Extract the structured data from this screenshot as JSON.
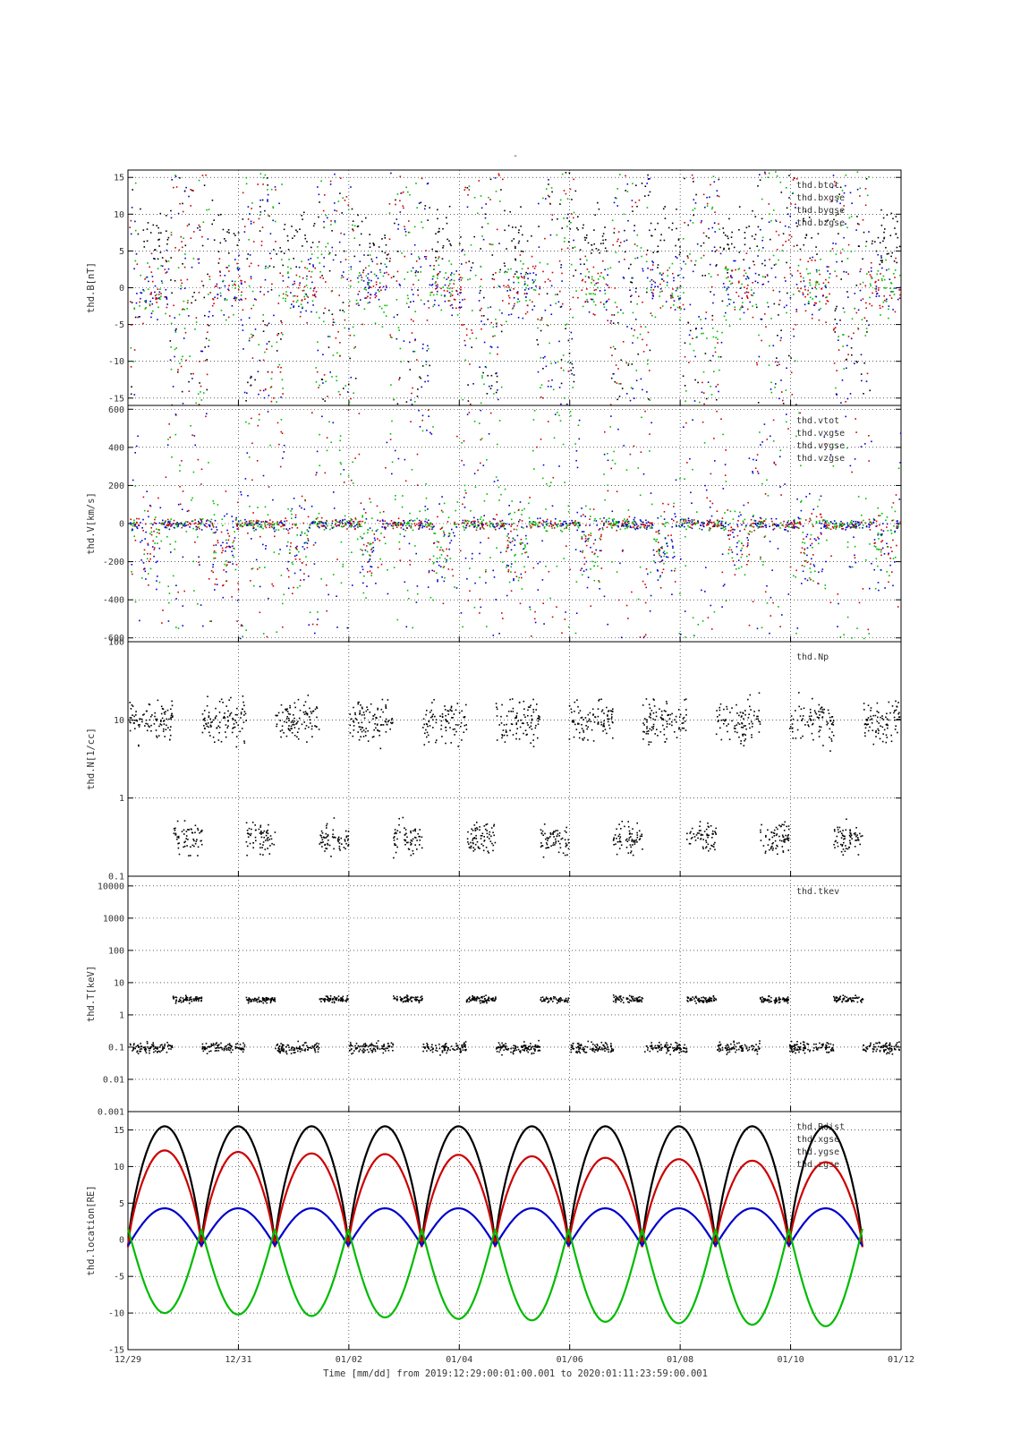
{
  "figure": {
    "title": "-",
    "x_axis_label": "Time [mm/dd]  from 2019:12:29:00:01:00.001  to  2020:01:11:23:59:00.001",
    "x_tick_labels": [
      "12/29",
      "12/31",
      "01/02",
      "01/04",
      "01/06",
      "01/08",
      "01/10",
      "01/12"
    ],
    "x_range_days": [
      0,
      14
    ],
    "series_colors": {
      "black": "#000000",
      "red": "#cc0000",
      "blue": "#0000cc",
      "green": "#00bb00"
    }
  },
  "chart_data": [
    {
      "type": "scatter",
      "ylabel": "thd.B[nT]",
      "ylim": [
        -16,
        16
      ],
      "y_scale": "linear",
      "ytick_values": [
        -15,
        -10,
        -5,
        0,
        5,
        10,
        15
      ],
      "ytick_labels": [
        "-15",
        "-10",
        "-5",
        "0",
        "5",
        "10",
        "15"
      ],
      "grid": true,
      "legend_placement": "top-right",
      "series": [
        {
          "name": "thd.btot",
          "color": "#000000"
        },
        {
          "name": "thd.bxgse",
          "color": "#cc0000"
        },
        {
          "name": "thd.bygse",
          "color": "#0000cc"
        },
        {
          "name": "thd.bzgse",
          "color": "#00bb00"
        }
      ],
      "note_values": "dense scatter approx: btot 0-15 nT, components -15..15 nT, periodic with ~1.33 day orbit"
    },
    {
      "type": "scatter",
      "ylabel": "thd.V[km/s]",
      "ylim": [
        -620,
        620
      ],
      "y_scale": "linear",
      "ytick_values": [
        -600,
        -400,
        -200,
        0,
        200,
        400,
        600
      ],
      "ytick_labels": [
        "-600",
        "-400",
        "-200",
        "0",
        "200",
        "400",
        "600"
      ],
      "grid": true,
      "legend_placement": "top-right",
      "series": [
        {
          "name": "thd.vtot",
          "color": "#000000"
        },
        {
          "name": "thd.vxgse",
          "color": "#cc0000"
        },
        {
          "name": "thd.vygse",
          "color": "#0000cc"
        },
        {
          "name": "thd.vzgse",
          "color": "#00bb00"
        }
      ]
    },
    {
      "type": "scatter",
      "ylabel": "thd.N[1/cc]",
      "ylim": [
        0.1,
        100
      ],
      "y_scale": "log",
      "ytick_values": [
        0.1,
        1,
        10,
        100
      ],
      "ytick_labels": [
        "0.1",
        "1",
        "10",
        "100"
      ],
      "grid": true,
      "legend_placement": "top-right",
      "series": [
        {
          "name": "thd.Np",
          "color": "#000000"
        }
      ]
    },
    {
      "type": "scatter",
      "ylabel": "thd.T[keV]",
      "ylim": [
        0.001,
        20000
      ],
      "y_scale": "log",
      "ytick_values": [
        0.001,
        0.01,
        0.1,
        1,
        10,
        100,
        1000,
        10000
      ],
      "ytick_labels": [
        "0.001",
        "0.01",
        "0.1",
        "1",
        "10",
        "100",
        "1000",
        "10000"
      ],
      "grid": true,
      "legend_placement": "top-right",
      "series": [
        {
          "name": "thd.tkev",
          "color": "#000000"
        }
      ]
    },
    {
      "type": "line",
      "ylabel": "thd.location[RE]",
      "ylim": [
        -15,
        17.5
      ],
      "y_scale": "linear",
      "ytick_values": [
        -15,
        -10,
        -5,
        0,
        5,
        10,
        15
      ],
      "ytick_labels": [
        "-15",
        "-10",
        "-5",
        "0",
        "5",
        "10",
        "15"
      ],
      "grid": true,
      "legend_placement": "top-right",
      "orbit_starts_days": [
        0,
        1.33,
        2.66,
        3.99,
        5.32,
        6.65,
        7.98,
        9.31,
        10.64,
        11.97,
        13.3
      ],
      "series": [
        {
          "name": "thd.Rdist",
          "color": "#000000",
          "orbit_peaks": [
            15.5,
            15.5,
            15.5,
            15.5,
            15.5,
            15.5,
            15.5,
            15.5,
            15.5,
            15.5
          ]
        },
        {
          "name": "thd.xgse",
          "color": "#cc0000",
          "orbit_peaks": [
            12.2,
            12.0,
            11.8,
            11.7,
            11.6,
            11.4,
            11.2,
            11.0,
            10.8,
            10.6
          ]
        },
        {
          "name": "thd.ygse",
          "color": "#0000cc",
          "orbit_peaks": [
            4.3,
            4.3,
            4.3,
            4.3,
            4.3,
            4.3,
            4.3,
            4.3,
            4.3,
            4.3
          ]
        },
        {
          "name": "thd.zgse",
          "color": "#00bb00",
          "orbit_minima": [
            -10.0,
            -10.2,
            -10.4,
            -10.6,
            -10.8,
            -11.0,
            -11.2,
            -11.4,
            -11.6,
            -11.8
          ]
        }
      ]
    }
  ]
}
